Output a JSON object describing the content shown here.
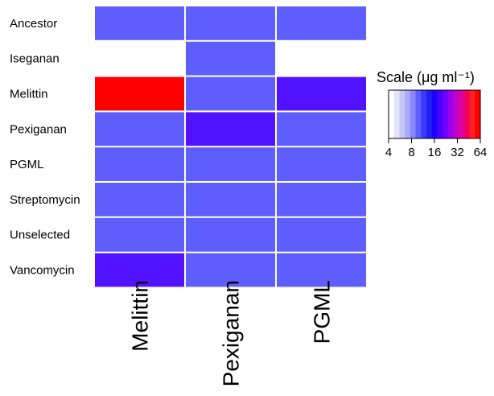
{
  "chart_data": {
    "type": "heatmap",
    "rows": [
      "Ancestor",
      "Iseganan",
      "Melittin",
      "Pexiganan",
      "PGML",
      "Streptomycin",
      "Unselected",
      "Vancomycin"
    ],
    "columns": [
      "Melittin",
      "Pexiganan",
      "PGML"
    ],
    "values": [
      [
        8,
        8,
        8
      ],
      [
        null,
        8,
        null
      ],
      [
        64,
        8,
        16
      ],
      [
        8,
        16,
        8
      ],
      [
        8,
        8,
        8
      ],
      [
        8,
        8,
        8
      ],
      [
        8,
        8,
        8
      ],
      [
        16,
        8,
        8
      ]
    ],
    "scale": {
      "title": "Scale (μg ml⁻¹)",
      "log2": true,
      "range": [
        4,
        64
      ],
      "ticks": [
        4,
        8,
        16,
        32,
        64
      ],
      "tick_labels": [
        "4",
        "8",
        "16",
        "32",
        "64"
      ]
    },
    "colors": {
      "low": "#ffffff",
      "mid": "#0000ff",
      "high": "#ff0000",
      "cell_value_8": "#5e5efd",
      "cell_value_16": "#5212ff",
      "cell_value_64": "#ff0000"
    },
    "grid_lines": "white",
    "legend_placement": "right"
  }
}
